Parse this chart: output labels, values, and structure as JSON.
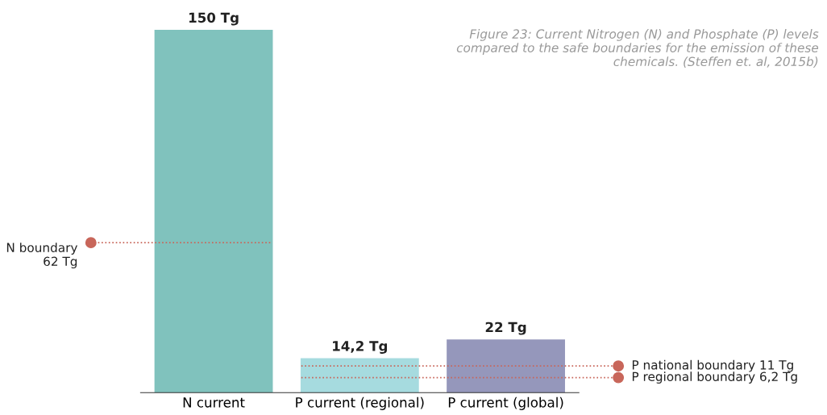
{
  "chart_data": {
    "type": "bar",
    "title": "Figure 23: Current Nitrogen (N) and Phosphate (P) levels\ncompared to the safe boundaries for the emission of these\nchemicals. (Steffen et. al, 2015b)",
    "categories": [
      "N current",
      "P current (regional)",
      "P current (global)"
    ],
    "values": [
      150,
      14.2,
      22
    ],
    "value_labels": [
      "150 Tg",
      "14,2 Tg",
      "22 Tg"
    ],
    "colors": [
      "#80c2bd",
      "#a6dbdf",
      "#9597bb"
    ],
    "ylim": [
      0,
      150
    ],
    "tick_labels": "x",
    "grid": false,
    "legend": false,
    "ref_lines": [
      {
        "axis": "y",
        "value": 62,
        "label": "N boundary\n62 Tg",
        "color": "#c8665a",
        "line_style": "dotted"
      },
      {
        "axis": "y",
        "value": 11,
        "label": "P national boundary 11 Tg",
        "color": "#c8665a",
        "line_style": "dotted"
      },
      {
        "axis": "y",
        "value": 6.2,
        "label": "P regional boundary 6,2 Tg",
        "color": "#c8665a",
        "line_style": "dotted"
      }
    ]
  }
}
